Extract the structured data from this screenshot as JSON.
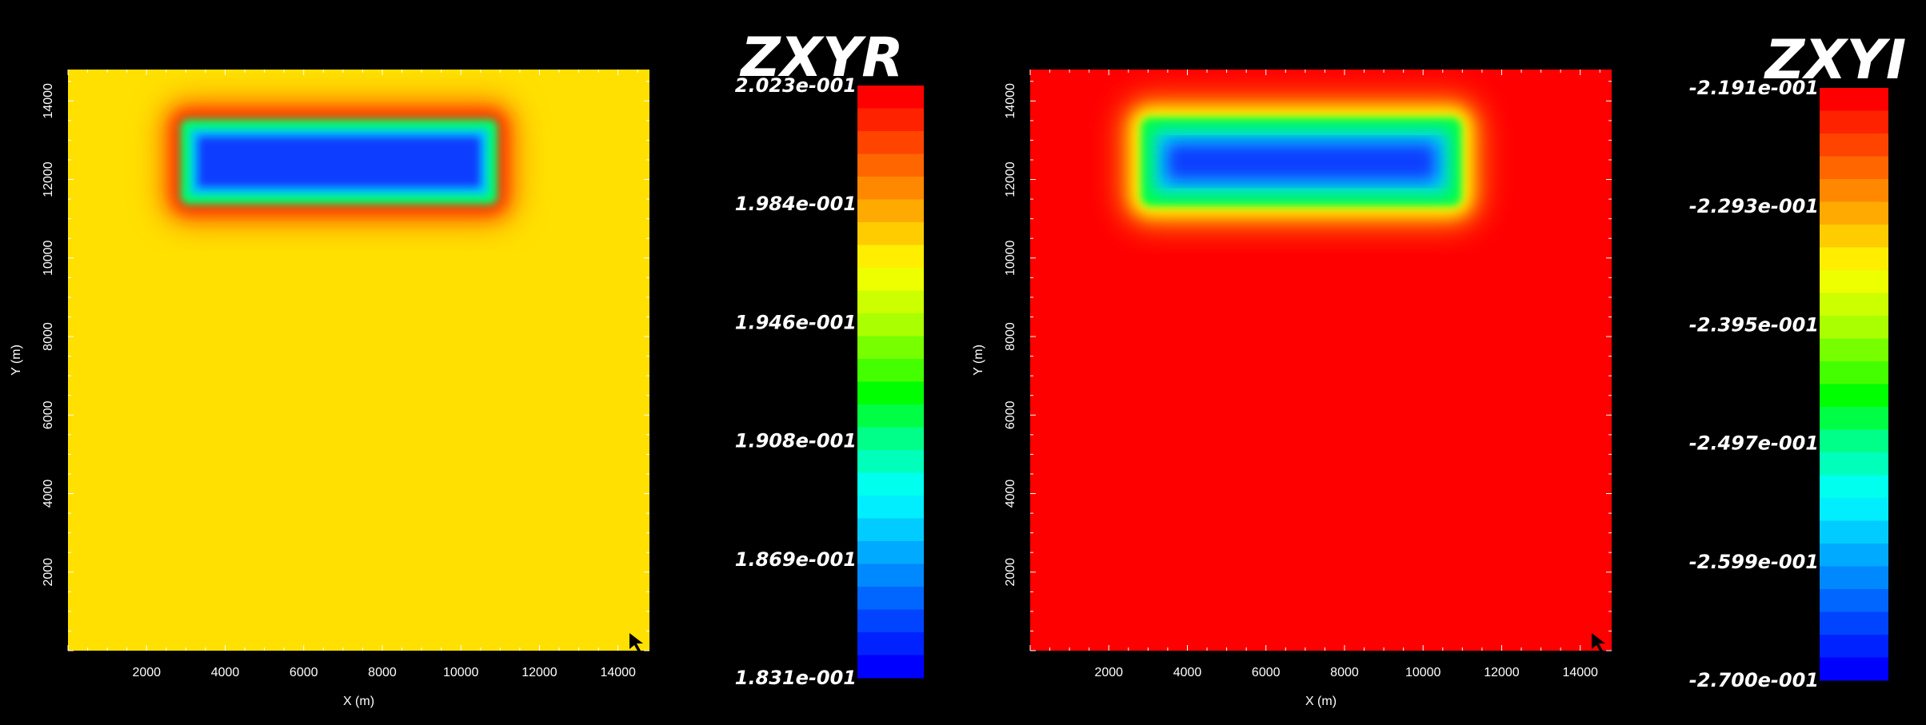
{
  "chart_data": [
    {
      "type": "heatmap",
      "title": "ZXYR",
      "xlabel": "X (m)",
      "ylabel": "Y (m)",
      "xlim": [
        0,
        14800
      ],
      "ylim": [
        0,
        14800
      ],
      "x_ticks": [
        2000,
        4000,
        6000,
        8000,
        10000,
        12000,
        14000
      ],
      "y_ticks": [
        2000,
        4000,
        6000,
        8000,
        10000,
        12000,
        14000
      ],
      "background_color": "#ffe000",
      "anomaly": {
        "shape": "7",
        "value": "low",
        "halo_color": "#ff2a00",
        "core_color": "#0a3cff"
      },
      "colorbar": {
        "min": 0.1831,
        "max": 0.2023,
        "tick_labels": [
          "2.023e-001",
          "1.984e-001",
          "1.946e-001",
          "1.908e-001",
          "1.869e-001",
          "1.831e-001"
        ]
      }
    },
    {
      "type": "heatmap",
      "title": "ZXYI",
      "xlabel": "X (m)",
      "ylabel": "Y (m)",
      "xlim": [
        0,
        14800
      ],
      "ylim": [
        0,
        14800
      ],
      "x_ticks": [
        2000,
        4000,
        6000,
        8000,
        10000,
        12000,
        14000
      ],
      "y_ticks": [
        2000,
        4000,
        6000,
        8000,
        10000,
        12000,
        14000
      ],
      "background_color": "#ff0000",
      "anomaly": {
        "shape": "7",
        "value": "low",
        "halo_color": "#ffff00",
        "core_color": "#0a3cff"
      },
      "colorbar": {
        "min": -0.27,
        "max": -0.2191,
        "tick_labels": [
          "-2.191e-001",
          "-2.293e-001",
          "-2.395e-001",
          "-2.497e-001",
          "-2.599e-001",
          "-2.700e-001"
        ]
      }
    }
  ]
}
